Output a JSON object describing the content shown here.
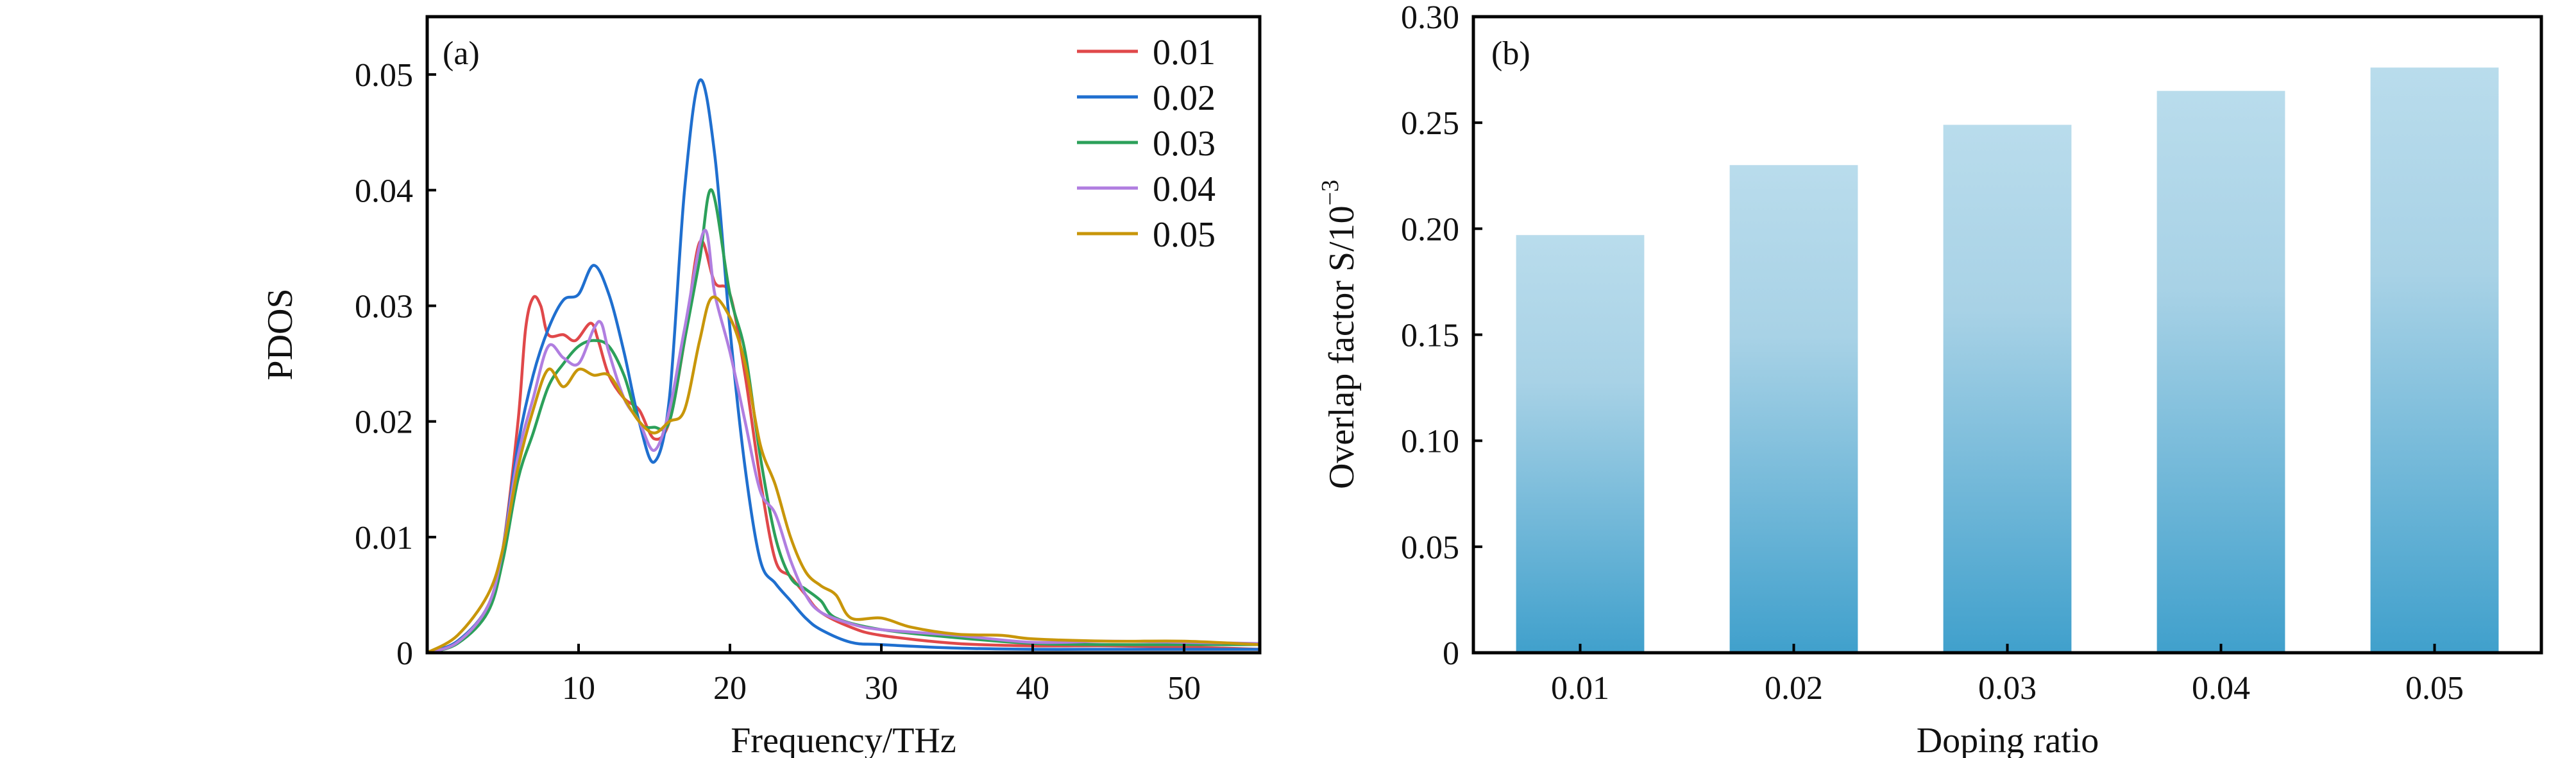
{
  "chart_data": [
    {
      "type": "line",
      "panel_label": "(a)",
      "xlabel": "Frequency/THz",
      "ylabel": "PDOS",
      "xlim": [
        0,
        55
      ],
      "ylim": [
        0,
        0.055
      ],
      "xticks": [
        10,
        20,
        30,
        40,
        50
      ],
      "yticks": [
        0,
        0.01,
        0.02,
        0.03,
        0.04,
        0.05
      ],
      "ytick_labels": [
        "0",
        "0.01",
        "0.02",
        "0.03",
        "0.04",
        "0.05"
      ],
      "grid": false,
      "legend_position": "top-right",
      "series": [
        {
          "name": "0.01",
          "color": "#e0484a",
          "x": [
            0,
            2,
            4,
            5,
            6,
            6.5,
            7,
            7.5,
            8,
            9,
            9.8,
            10.8,
            11.3,
            12,
            13,
            14,
            15,
            16,
            17,
            18,
            19,
            20,
            21,
            22,
            23,
            24,
            25,
            26,
            28,
            30,
            35,
            40,
            45,
            50,
            55
          ],
          "y": [
            0,
            0.001,
            0.004,
            0.009,
            0.02,
            0.028,
            0.0307,
            0.03,
            0.0275,
            0.0275,
            0.027,
            0.0285,
            0.027,
            0.024,
            0.022,
            0.021,
            0.0185,
            0.02,
            0.027,
            0.0355,
            0.032,
            0.031,
            0.024,
            0.015,
            0.008,
            0.0066,
            0.005,
            0.0035,
            0.0022,
            0.0015,
            0.0008,
            0.0006,
            0.0006,
            0.0005,
            0.0003
          ]
        },
        {
          "name": "0.02",
          "color": "#1f6fcf",
          "x": [
            0,
            2,
            4,
            5,
            6,
            7,
            8,
            9,
            10,
            11,
            12,
            13,
            14,
            15,
            16,
            17,
            18,
            19,
            20,
            21,
            22,
            23,
            24,
            25,
            26,
            28,
            30,
            35,
            40,
            45,
            50,
            55
          ],
          "y": [
            0,
            0.001,
            0.004,
            0.009,
            0.018,
            0.024,
            0.028,
            0.0305,
            0.031,
            0.0335,
            0.031,
            0.026,
            0.02,
            0.0165,
            0.022,
            0.04,
            0.0495,
            0.043,
            0.028,
            0.016,
            0.008,
            0.006,
            0.0045,
            0.003,
            0.002,
            0.0009,
            0.0007,
            0.0004,
            0.0003,
            0.0003,
            0.0003,
            0.0003
          ]
        },
        {
          "name": "0.03",
          "color": "#2ca05a",
          "x": [
            0,
            2,
            4,
            5,
            6,
            7,
            8,
            9,
            10,
            11,
            12,
            13,
            14,
            15,
            16,
            17,
            18,
            18.8,
            20,
            21,
            22,
            23,
            24,
            25,
            26,
            27,
            30,
            35,
            40,
            45,
            50,
            55
          ],
          "y": [
            0,
            0.0008,
            0.0035,
            0.008,
            0.015,
            0.019,
            0.023,
            0.025,
            0.0265,
            0.027,
            0.0265,
            0.024,
            0.02,
            0.0195,
            0.02,
            0.027,
            0.034,
            0.04,
            0.031,
            0.026,
            0.017,
            0.01,
            0.0065,
            0.0055,
            0.0045,
            0.003,
            0.002,
            0.0013,
            0.0008,
            0.0007,
            0.0007,
            0.0007
          ]
        },
        {
          "name": "0.04",
          "color": "#b07ee0",
          "x": [
            0,
            2,
            4,
            5,
            6,
            7,
            8,
            9,
            10,
            11,
            11.5,
            12,
            13,
            14,
            15,
            16,
            17,
            18.3,
            19,
            20,
            21,
            22,
            23,
            24,
            25,
            26,
            28,
            30,
            35,
            40,
            45,
            50,
            55
          ],
          "y": [
            0,
            0.0009,
            0.004,
            0.009,
            0.017,
            0.022,
            0.0265,
            0.0255,
            0.025,
            0.028,
            0.0285,
            0.026,
            0.022,
            0.02,
            0.0175,
            0.021,
            0.028,
            0.0365,
            0.031,
            0.026,
            0.02,
            0.014,
            0.012,
            0.008,
            0.005,
            0.0035,
            0.0025,
            0.002,
            0.0015,
            0.0009,
            0.001,
            0.0009,
            0.0008
          ]
        },
        {
          "name": "0.05",
          "color": "#c8960a",
          "x": [
            0,
            2,
            4,
            5,
            6,
            7,
            8,
            9,
            10,
            11,
            12,
            13,
            14,
            15,
            16,
            17,
            18,
            18.8,
            20,
            21,
            22,
            23,
            24,
            25,
            26,
            27,
            28,
            30,
            32,
            35,
            38,
            40,
            45,
            50,
            55
          ],
          "y": [
            0,
            0.0015,
            0.005,
            0.009,
            0.016,
            0.021,
            0.0245,
            0.023,
            0.0245,
            0.024,
            0.024,
            0.022,
            0.02,
            0.019,
            0.02,
            0.021,
            0.027,
            0.0307,
            0.029,
            0.025,
            0.018,
            0.0145,
            0.01,
            0.007,
            0.0058,
            0.005,
            0.003,
            0.003,
            0.0022,
            0.0016,
            0.0015,
            0.0012,
            0.001,
            0.001,
            0.0007
          ]
        }
      ]
    },
    {
      "type": "bar",
      "panel_label": "(b)",
      "xlabel": "Doping ratio",
      "ylabel": "Overlap factor S/10",
      "ylabel_exponent": "−3",
      "categories": [
        "0.01",
        "0.02",
        "0.03",
        "0.04",
        "0.05"
      ],
      "values": [
        0.197,
        0.23,
        0.249,
        0.265,
        0.276
      ],
      "ylim": [
        0,
        0.3
      ],
      "yticks": [
        0,
        0.05,
        0.1,
        0.15,
        0.2,
        0.25,
        0.3
      ],
      "ytick_labels": [
        "0",
        "0.05",
        "0.10",
        "0.15",
        "0.20",
        "0.25",
        "0.30"
      ],
      "grid": false,
      "bar_color_top": "#b9dcec",
      "bar_color_bottom": "#40a0cc"
    }
  ]
}
